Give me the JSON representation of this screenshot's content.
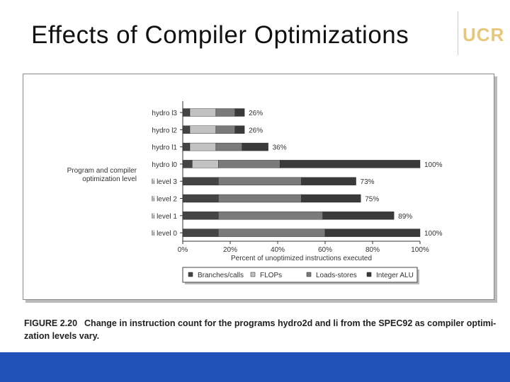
{
  "slide": {
    "title": "Effects of Compiler Optimizations",
    "logo_text": "UCR",
    "caption_number": "FIGURE 2.20",
    "caption_text": "Change in instruction count for the programs hydro2d and li from the SPEC92 as compiler optimi- zation levels vary."
  },
  "colors": {
    "bottom_bar": "#2052b8",
    "branches": "#444444",
    "flops": "#c2c2c2",
    "loads_stores": "#7a7a7a",
    "integer_alu": "#3a3a3a"
  },
  "chart_data": {
    "type": "bar",
    "orientation": "horizontal",
    "stacked": true,
    "title": "",
    "ylabel": "Program and compiler optimization level",
    "xlabel": "Percent of unoptimized instructions executed",
    "xlim": [
      0,
      100
    ],
    "x_ticks": [
      "0%",
      "20%",
      "40%",
      "60%",
      "80%",
      "100%"
    ],
    "categories": [
      "hydro l3",
      "hydro l2",
      "hydro l1",
      "hydro l0",
      "li level 3",
      "li level 2",
      "li level 1",
      "li level 0"
    ],
    "series": [
      {
        "name": "Branches/calls",
        "values": [
          3,
          3,
          3,
          4,
          15,
          15,
          15,
          15
        ]
      },
      {
        "name": "FLOPs",
        "values": [
          11,
          11,
          11,
          11,
          0,
          0,
          0,
          0
        ]
      },
      {
        "name": "Loads-stores",
        "values": [
          8,
          8,
          11,
          26,
          35,
          35,
          44,
          45
        ]
      },
      {
        "name": "Integer ALU",
        "values": [
          4,
          4,
          11,
          59,
          23,
          25,
          30,
          40
        ]
      }
    ],
    "total_labels": [
      "26%",
      "26%",
      "36%",
      "100%",
      "73%",
      "75%",
      "89%",
      "100%"
    ],
    "legend_position": "bottom",
    "grid": false
  }
}
